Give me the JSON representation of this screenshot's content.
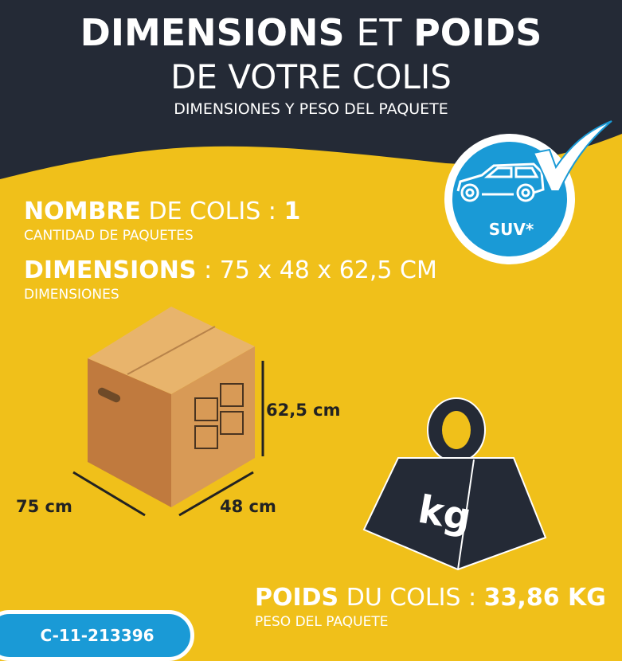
{
  "title": {
    "line1_bold": "DIMENSIONS",
    "line1_rest": "ET",
    "line1_bold2": "POIDS",
    "line2": "DE VOTRE COLIS",
    "subtitle": "DIMENSIONES Y PESO DEL PAQUETE"
  },
  "badge": {
    "label": "SUV*",
    "icon": "car-suv-icon",
    "check": "checkmark-icon"
  },
  "colis": {
    "label_bold": "NOMBRE",
    "label_rest": "DE COLIS :",
    "value": "1",
    "sub": "CANTIDAD DE PAQUETES"
  },
  "dimensions": {
    "label_bold": "DIMENSIONS",
    "label_rest": ":",
    "value": "75 x 48 x 62,5 CM",
    "sub": "DIMENSIONES"
  },
  "box": {
    "height": "62,5 cm",
    "length": "75 cm",
    "width": "48 cm"
  },
  "weight_icon": {
    "label": "kg"
  },
  "poids": {
    "label_bold": "POIDS",
    "label_rest": "DU COLIS :",
    "value": "33,86 KG",
    "sub": "PESO DEL PAQUETE"
  },
  "reference": "C-11-213396",
  "colors": {
    "navy": "#242a36",
    "yellow": "#f0c01a",
    "blue": "#1a9ad6"
  }
}
